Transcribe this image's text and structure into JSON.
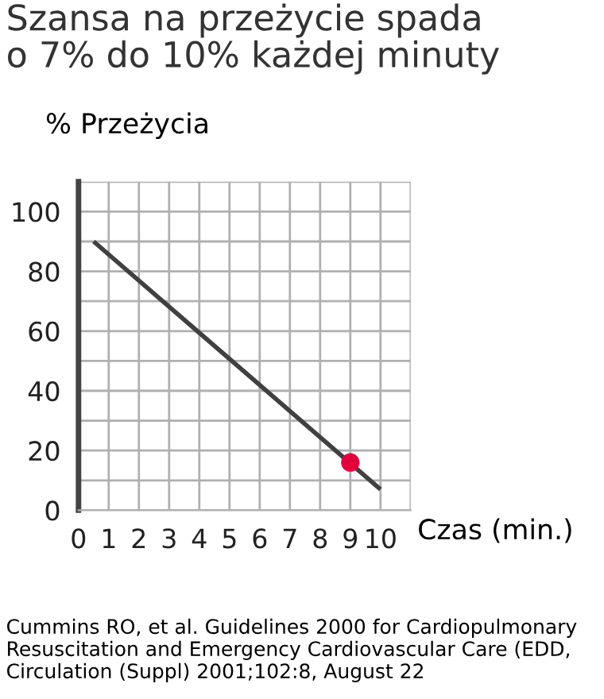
{
  "chart_data": {
    "type": "line",
    "title": "Szansa na przeżycie spada\no 7% do 10% każdej minuty",
    "xlabel": "Czas (min.)",
    "ylabel": "% Przeżycia",
    "annotations": [
      "Cummins RO, et al. Guidelines 2000 for Cardiopulmonary Resuscitation and Emergency Cardiovascular Care (EDD, Circulation (Suppl) 2001;102:8, August 22"
    ],
    "series": [
      {
        "color": "#404040",
        "x": [
          0.5,
          10
        ],
        "values": [
          90,
          7
        ],
        "marker": "none"
      },
      {
        "type": "scatter",
        "color": "#e4003a",
        "x": [
          9
        ],
        "values": [
          16
        ],
        "marker": "circle"
      }
    ],
    "xlim": [
      0,
      11
    ],
    "ylim": [
      0,
      110
    ],
    "xticks": [
      0,
      1,
      2,
      3,
      4,
      5,
      6,
      7,
      8,
      9,
      10,
      {
        "value": 11,
        "label": null
      }
    ],
    "yticks": [
      0,
      {
        "value": 10,
        "label": null
      },
      20,
      {
        "value": 30,
        "label": null
      },
      40,
      {
        "value": 50,
        "label": null
      },
      60,
      {
        "value": 70,
        "label": null
      },
      80,
      {
        "value": 90,
        "label": null
      },
      100,
      {
        "value": 110,
        "label": null
      }
    ],
    "grid": true,
    "line_style": "solid"
  }
}
